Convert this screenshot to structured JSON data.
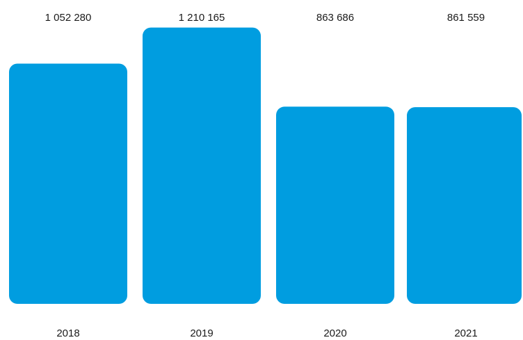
{
  "chart_data": {
    "type": "bar",
    "categories": [
      "2018",
      "2019",
      "2020",
      "2021"
    ],
    "values": [
      1052280,
      1210165,
      863686,
      861559
    ],
    "value_labels": [
      "1 052 280",
      "1 210 165",
      "863 686",
      "861 559"
    ],
    "title": "",
    "xlabel": "",
    "ylabel": "",
    "ylim": [
      0,
      1270000
    ],
    "grid": false,
    "legend": "none",
    "bar_color": "#009de0"
  }
}
